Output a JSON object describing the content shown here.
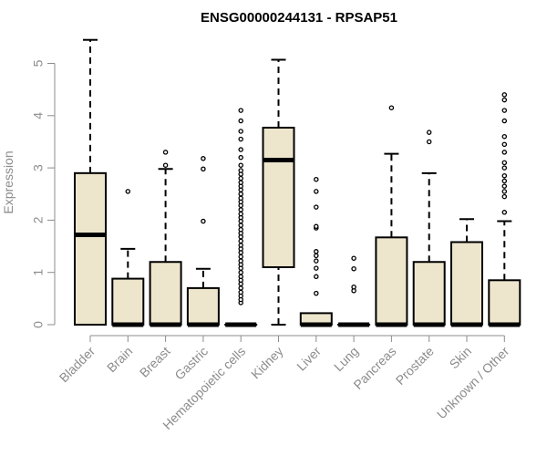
{
  "chart_data": {
    "type": "box",
    "title": "ENSG00000244131 - RPSAP51",
    "xlabel": "",
    "ylabel": "Expression",
    "ylim": [
      0,
      5.5
    ],
    "yticks": [
      0,
      1,
      2,
      3,
      4,
      5
    ],
    "grid": false,
    "categories": [
      "Bladder",
      "Brain",
      "Breast",
      "Gastric",
      "Hematopoietic cells",
      "Kidney",
      "Liver",
      "Lung",
      "Pancreas",
      "Prostate",
      "Skin",
      "Unknown / Other"
    ],
    "boxes": [
      {
        "name": "Bladder",
        "whisker_low": 0,
        "q1": 0,
        "median": 1.72,
        "q3": 2.9,
        "whisker_high": 5.45,
        "outliers": []
      },
      {
        "name": "Brain",
        "whisker_low": 0,
        "q1": 0,
        "median": 0,
        "q3": 0.88,
        "whisker_high": 1.45,
        "outliers": [
          2.55
        ]
      },
      {
        "name": "Breast",
        "whisker_low": 0,
        "q1": 0,
        "median": 0,
        "q3": 1.2,
        "whisker_high": 2.98,
        "outliers": [
          3.05,
          3.3
        ]
      },
      {
        "name": "Gastric",
        "whisker_low": 0,
        "q1": 0,
        "median": 0,
        "q3": 0.7,
        "whisker_high": 1.07,
        "outliers": [
          1.98,
          2.98,
          3.18
        ]
      },
      {
        "name": "Hematopoietic cells",
        "whisker_low": 0,
        "q1": 0,
        "median": 0,
        "q3": 0,
        "whisker_high": 0,
        "outliers": [
          0.42,
          0.48,
          0.55,
          0.62,
          0.7,
          0.78,
          0.85,
          0.92,
          1.0,
          1.08,
          1.15,
          1.22,
          1.3,
          1.38,
          1.45,
          1.52,
          1.6,
          1.68,
          1.75,
          1.82,
          1.9,
          1.98,
          2.05,
          2.12,
          2.2,
          2.28,
          2.35,
          2.42,
          2.5,
          2.58,
          2.65,
          2.72,
          2.8,
          2.88,
          2.95,
          3.05,
          3.2,
          3.35,
          3.55,
          3.7,
          3.9,
          4.1
        ]
      },
      {
        "name": "Kidney",
        "whisker_low": 0,
        "q1": 1.1,
        "median": 3.15,
        "q3": 3.77,
        "whisker_high": 5.07,
        "outliers": []
      },
      {
        "name": "Liver",
        "whisker_low": 0,
        "q1": 0,
        "median": 0,
        "q3": 0.22,
        "whisker_high": 0.22,
        "outliers": [
          0.6,
          0.92,
          1.08,
          1.22,
          1.32,
          1.4,
          1.85,
          1.88,
          2.25,
          2.55,
          2.78
        ]
      },
      {
        "name": "Lung",
        "whisker_low": 0,
        "q1": 0,
        "median": 0,
        "q3": 0,
        "whisker_high": 0,
        "outliers": [
          0.65,
          0.72,
          1.07,
          1.27
        ]
      },
      {
        "name": "Pancreas",
        "whisker_low": 0,
        "q1": 0,
        "median": 0,
        "q3": 1.67,
        "whisker_high": 3.27,
        "outliers": [
          4.15
        ]
      },
      {
        "name": "Prostate",
        "whisker_low": 0,
        "q1": 0,
        "median": 0,
        "q3": 1.2,
        "whisker_high": 2.9,
        "outliers": [
          3.5,
          3.68
        ]
      },
      {
        "name": "Skin",
        "whisker_low": 0,
        "q1": 0,
        "median": 0,
        "q3": 1.58,
        "whisker_high": 2.02,
        "outliers": []
      },
      {
        "name": "Unknown / Other",
        "whisker_low": 0,
        "q1": 0,
        "median": 0,
        "q3": 0.85,
        "whisker_high": 1.98,
        "outliers": [
          2.15,
          2.45,
          2.55,
          2.65,
          2.75,
          2.85,
          3.0,
          3.1,
          3.3,
          3.45,
          3.6,
          3.9,
          4.1,
          4.3,
          4.4
        ]
      }
    ]
  }
}
